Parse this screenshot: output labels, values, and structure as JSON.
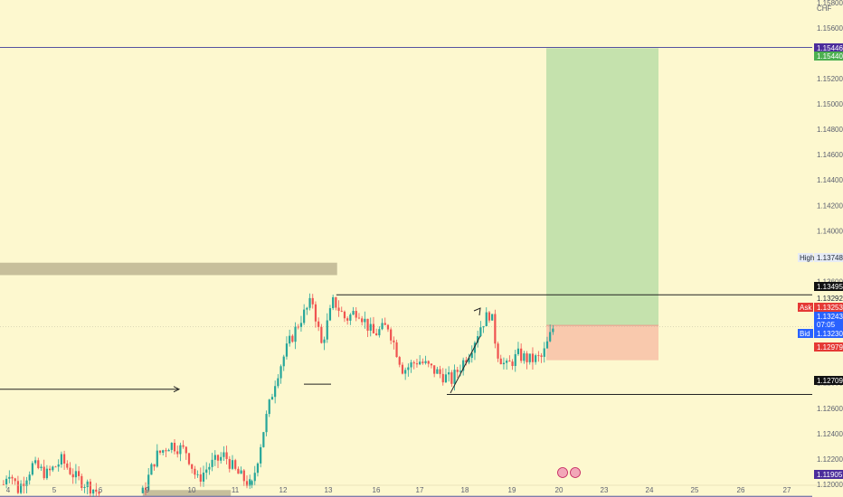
{
  "chart_data": {
    "type": "candlestick",
    "currency": "CHF",
    "colors": {
      "background": "#fdf8cf",
      "up": "#26a69a",
      "down": "#ef5350",
      "target_zone": "#c5e2ad",
      "stop_zone": "#f9c9ad",
      "supply_zone": "#c7bf9b",
      "line_blue": "#5552a0",
      "label_purple": "#4b2c9b",
      "label_green": "#4caf50",
      "label_red": "#e53935",
      "label_blue": "#2962ff",
      "label_black": "#111111"
    },
    "y_axis": {
      "range": [
        1.119,
        1.1582
      ],
      "ticks": [
        "1.15800",
        "1.15600",
        "1.15200",
        "1.15000",
        "1.14800",
        "1.14600",
        "1.14400",
        "1.14200",
        "1.14000",
        "1.13800",
        "1.13600",
        "1.12800",
        "1.12600",
        "1.12400",
        "1.12200",
        "1.12000"
      ]
    },
    "x_axis": {
      "ticks": [
        "4",
        "5",
        "6",
        "9",
        "10",
        "11",
        "12",
        "13",
        "16",
        "17",
        "18",
        "19",
        "20",
        "23",
        "24",
        "25",
        "26",
        "27"
      ]
    },
    "price_labels": [
      {
        "prefix": "",
        "value": "1.15446",
        "kind": "purple"
      },
      {
        "prefix": "",
        "value": "1.15440",
        "kind": "green"
      },
      {
        "prefix": "High",
        "value": "1.13748",
        "kind": "light"
      },
      {
        "prefix": "",
        "value": "1.13495",
        "kind": "black"
      },
      {
        "prefix": "",
        "value": "1.13292",
        "kind": "plain"
      },
      {
        "prefix": "Ask",
        "value": "1.13253",
        "kind": "red"
      },
      {
        "prefix": "",
        "value": "1.13243",
        "kind": "blue"
      },
      {
        "prefix": "",
        "value": "07:05",
        "kind": "blue"
      },
      {
        "prefix": "Bid",
        "value": "1.13230",
        "kind": "blue"
      },
      {
        "prefix": "",
        "value": "1.12979",
        "kind": "red"
      },
      {
        "prefix": "",
        "value": "1.12709",
        "kind": "black"
      },
      {
        "prefix": "",
        "value": "1.11905",
        "kind": "purple"
      }
    ],
    "levels": {
      "top_line": 1.15446,
      "resistance": 1.13495,
      "support": 1.12709,
      "bottom_line": 1.11905,
      "entry": 1.13253,
      "target": 1.1544,
      "stop": 1.12979
    },
    "position": {
      "start_day": 20.0,
      "end_day": 24.2
    },
    "supply_zone": {
      "low": 1.1365,
      "high": 1.13748,
      "start_day": 3.9,
      "end_day": 13.55
    },
    "demand_zone": {
      "low": 1.11905,
      "high": 1.11955,
      "start_day": 8.7,
      "end_day": 10.9
    },
    "candles": {
      "segments": [
        {
          "start": 3.9,
          "end": 6.0,
          "pts": [
            [
              0,
              1.12
            ],
            [
              0.05,
              1.1212
            ],
            [
              0.15,
              1.1196
            ],
            [
              0.3,
              1.1215
            ],
            [
              0.45,
              1.1208
            ],
            [
              0.6,
              1.1219
            ],
            [
              0.75,
              1.1205
            ],
            [
              0.9,
              1.1198
            ],
            [
              1.0,
              1.1192
            ]
          ]
        },
        {
          "start": 8.7,
          "end": 11.35,
          "pts": [
            [
              0,
              1.1193
            ],
            [
              0.12,
              1.1222
            ],
            [
              0.25,
              1.1232
            ],
            [
              0.4,
              1.1226
            ],
            [
              0.5,
              1.1203
            ],
            [
              0.6,
              1.1214
            ],
            [
              0.75,
              1.1223
            ],
            [
              0.85,
              1.121
            ],
            [
              1.0,
              1.1198
            ]
          ]
        },
        {
          "start": 11.35,
          "end": 19.9,
          "pts": [
            [
              0,
              1.1199
            ],
            [
              0.04,
              1.1245
            ],
            [
              0.08,
              1.1285
            ],
            [
              0.12,
              1.131
            ],
            [
              0.16,
              1.133
            ],
            [
              0.2,
              1.1345
            ],
            [
              0.23,
              1.131
            ],
            [
              0.27,
              1.1345
            ],
            [
              0.31,
              1.133
            ],
            [
              0.35,
              1.1338
            ],
            [
              0.4,
              1.1318
            ],
            [
              0.45,
              1.1325
            ],
            [
              0.5,
              1.129
            ],
            [
              0.55,
              1.1298
            ],
            [
              0.6,
              1.129
            ],
            [
              0.66,
              1.1282
            ],
            [
              0.72,
              1.1305
            ],
            [
              0.76,
              1.1327
            ],
            [
              0.79,
              1.1336
            ],
            [
              0.81,
              1.1305
            ],
            [
              0.84,
              1.1292
            ],
            [
              0.88,
              1.1302
            ],
            [
              0.92,
              1.1298
            ],
            [
              0.96,
              1.13
            ],
            [
              1.0,
              1.1326
            ]
          ]
        }
      ]
    }
  }
}
